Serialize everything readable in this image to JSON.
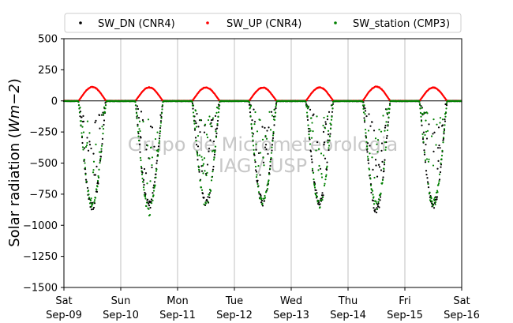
{
  "chart_data": {
    "type": "scatter",
    "ylabel_prefix": "Solar radiation (",
    "ylabel_unit": "Wm−2",
    "ylabel_suffix": ")",
    "ylim": [
      -1500,
      500
    ],
    "yticks": [
      {
        "value": 500,
        "label": "500"
      },
      {
        "value": 250,
        "label": "250"
      },
      {
        "value": 0,
        "label": "0"
      },
      {
        "value": -250,
        "label": "−250"
      },
      {
        "value": -500,
        "label": "−500"
      },
      {
        "value": -750,
        "label": "−750"
      },
      {
        "value": -1000,
        "label": "−1000"
      },
      {
        "value": -1250,
        "label": "−1250"
      },
      {
        "value": -1500,
        "label": "−1500"
      }
    ],
    "xlim": [
      "2017-09-09T00:00",
      "2017-09-16T00:00"
    ],
    "xticks": [
      {
        "day": 0,
        "weekday": "Sat",
        "date": "Sep-09"
      },
      {
        "day": 1,
        "weekday": "Sun",
        "date": "Sep-10"
      },
      {
        "day": 2,
        "weekday": "Mon",
        "date": "Sep-11"
      },
      {
        "day": 3,
        "weekday": "Tue",
        "date": "Sep-12"
      },
      {
        "day": 4,
        "weekday": "Wed",
        "date": "Sep-13"
      },
      {
        "day": 5,
        "weekday": "Thu",
        "date": "Sep-14"
      },
      {
        "day": 6,
        "weekday": "Fri",
        "date": "Sep-15"
      },
      {
        "day": 7,
        "weekday": "Sat",
        "date": "Sep-16"
      }
    ],
    "grid": "vertical",
    "legend_position": "top",
    "watermark": [
      "Grupo de Micrometeorologia",
      "IAG / USP"
    ],
    "hour_of_sunrise": 6.1,
    "hour_of_sunset": 17.9,
    "series": [
      {
        "name": "SW_DN (CNR4)",
        "color": "#000000",
        "marker": "dot",
        "daily_peak": [
          -880,
          -870,
          -860,
          -850,
          -850,
          -910,
          -870
        ],
        "sample_interval_min": 10
      },
      {
        "name": "SW_UP (CNR4)",
        "color": "#ff0000",
        "marker": "dot",
        "daily_peak": [
          112,
          108,
          108,
          107,
          108,
          115,
          107
        ],
        "sample_interval_min": 10
      },
      {
        "name": "SW_station (CMP3)",
        "color": "#008000",
        "marker": "dot",
        "daily_peak": [
          -860,
          -925,
          -860,
          -845,
          -860,
          -880,
          -860
        ],
        "sample_interval_min": 10
      }
    ]
  }
}
